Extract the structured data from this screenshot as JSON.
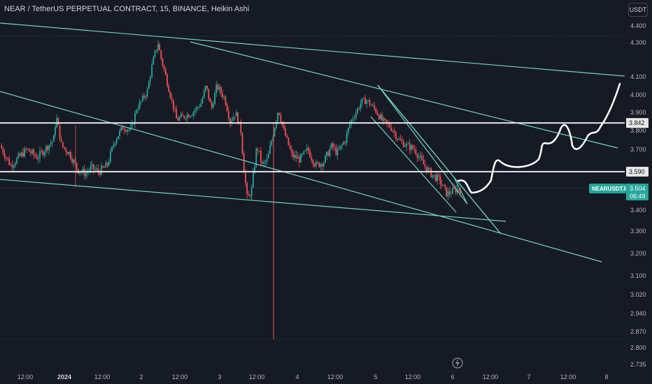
{
  "header": {
    "title": "NEAR / TetherUS PERPETUAL CONTRACT, 15, BINANCE, Heikin Ashi",
    "currency_button": "USDT"
  },
  "colors": {
    "background": "#161a25",
    "up": "#26a69a",
    "down": "#ef5350",
    "trendline": "#6fd3c0",
    "level_line": "#e6e6e6",
    "projection": "#ffffff"
  },
  "chart_data": {
    "type": "candlestick",
    "symbol": "NEARUSDT.P",
    "exchange": "BINANCE",
    "interval": "15",
    "style": "Heikin Ashi",
    "y_axis_ticks": [
      "4.400",
      "4.300",
      "4.100",
      "4.000",
      "3.900",
      "3.800",
      "3.700",
      "3.400",
      "3.300",
      "3.200",
      "3.100",
      "3.020",
      "2.940",
      "2.870",
      "2.800",
      "2.735"
    ],
    "x_axis_ticks": [
      {
        "label": "12:00",
        "bold": false
      },
      {
        "label": "2024",
        "bold": true
      },
      {
        "label": "12:00",
        "bold": false
      },
      {
        "label": "2",
        "bold": false
      },
      {
        "label": "12:00",
        "bold": false
      },
      {
        "label": "3",
        "bold": false
      },
      {
        "label": "12:00",
        "bold": false
      },
      {
        "label": "4",
        "bold": false
      },
      {
        "label": "12:00",
        "bold": false
      },
      {
        "label": "5",
        "bold": false
      },
      {
        "label": "12:00",
        "bold": false
      },
      {
        "label": "6",
        "bold": false
      },
      {
        "label": "12:00",
        "bold": false
      },
      {
        "label": "7",
        "bold": false
      },
      {
        "label": "12:00",
        "bold": false
      },
      {
        "label": "8",
        "bold": false
      }
    ],
    "horizontal_levels": [
      {
        "value": 3.842,
        "label": "3.842"
      },
      {
        "value": 3.59,
        "label": "3.590"
      }
    ],
    "last_price": {
      "symbol_label": "NEARUSDT.P",
      "price": "3.504",
      "countdown": "06:49"
    },
    "price_path": [
      [
        0,
        3.72
      ],
      [
        0.02,
        3.62
      ],
      [
        0.05,
        3.7
      ],
      [
        0.07,
        3.66
      ],
      [
        0.1,
        3.75
      ],
      [
        0.105,
        3.88
      ],
      [
        0.115,
        3.72
      ],
      [
        0.13,
        3.68
      ],
      [
        0.145,
        3.6
      ],
      [
        0.16,
        3.58
      ],
      [
        0.17,
        3.61
      ],
      [
        0.185,
        3.59
      ],
      [
        0.2,
        3.62
      ],
      [
        0.215,
        3.75
      ],
      [
        0.23,
        3.82
      ],
      [
        0.245,
        3.8
      ],
      [
        0.255,
        3.92
      ],
      [
        0.275,
        4.02
      ],
      [
        0.285,
        4.18
      ],
      [
        0.295,
        4.3
      ],
      [
        0.3,
        4.22
      ],
      [
        0.31,
        4.1
      ],
      [
        0.32,
        3.98
      ],
      [
        0.33,
        3.86
      ],
      [
        0.345,
        3.88
      ],
      [
        0.36,
        3.9
      ],
      [
        0.375,
        3.95
      ],
      [
        0.385,
        4.05
      ],
      [
        0.395,
        3.92
      ],
      [
        0.405,
        4.05
      ],
      [
        0.42,
        3.98
      ],
      [
        0.43,
        3.85
      ],
      [
        0.44,
        3.9
      ],
      [
        0.45,
        3.8
      ],
      [
        0.455,
        3.62
      ],
      [
        0.462,
        3.45
      ],
      [
        0.47,
        3.5
      ],
      [
        0.48,
        3.72
      ],
      [
        0.49,
        3.62
      ],
      [
        0.5,
        3.65
      ],
      [
        0.51,
        3.78
      ],
      [
        0.52,
        3.92
      ],
      [
        0.53,
        3.8
      ],
      [
        0.545,
        3.67
      ],
      [
        0.56,
        3.65
      ],
      [
        0.575,
        3.7
      ],
      [
        0.59,
        3.62
      ],
      [
        0.605,
        3.64
      ],
      [
        0.62,
        3.72
      ],
      [
        0.63,
        3.68
      ],
      [
        0.645,
        3.75
      ],
      [
        0.655,
        3.85
      ],
      [
        0.665,
        3.9
      ],
      [
        0.675,
        3.96
      ],
      [
        0.685,
        3.97
      ],
      [
        0.7,
        3.92
      ],
      [
        0.715,
        3.85
      ],
      [
        0.73,
        3.82
      ],
      [
        0.745,
        3.75
      ],
      [
        0.76,
        3.72
      ],
      [
        0.775,
        3.7
      ],
      [
        0.79,
        3.63
      ],
      [
        0.805,
        3.58
      ],
      [
        0.82,
        3.55
      ],
      [
        0.835,
        3.48
      ],
      [
        0.85,
        3.5
      ],
      [
        0.86,
        3.504
      ]
    ]
  },
  "footer": {
    "icon": "lightning-icon"
  }
}
